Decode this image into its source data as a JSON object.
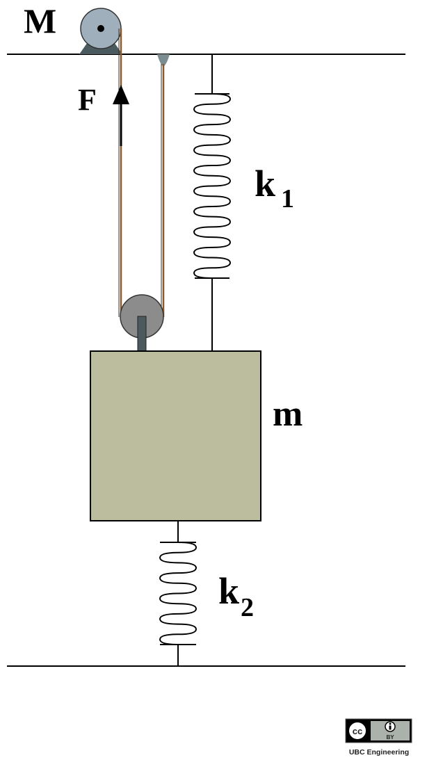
{
  "labels": {
    "pulley_mass": "M",
    "force": "F",
    "spring_top": "k",
    "spring_top_subscript": "1",
    "block_mass": "m",
    "spring_bottom": "k",
    "spring_bottom_subscript": "2"
  },
  "license": {
    "badge_left": "cc",
    "badge_right": "BY",
    "credit": "UBC Engineering"
  },
  "colors": {
    "line": "#000000",
    "rope": "#8B5A2B",
    "pulley": "#8c8c8c",
    "pulley_top": "#9fb0bc",
    "block": "#bcbc9f",
    "axle": "#4b5a5e"
  }
}
